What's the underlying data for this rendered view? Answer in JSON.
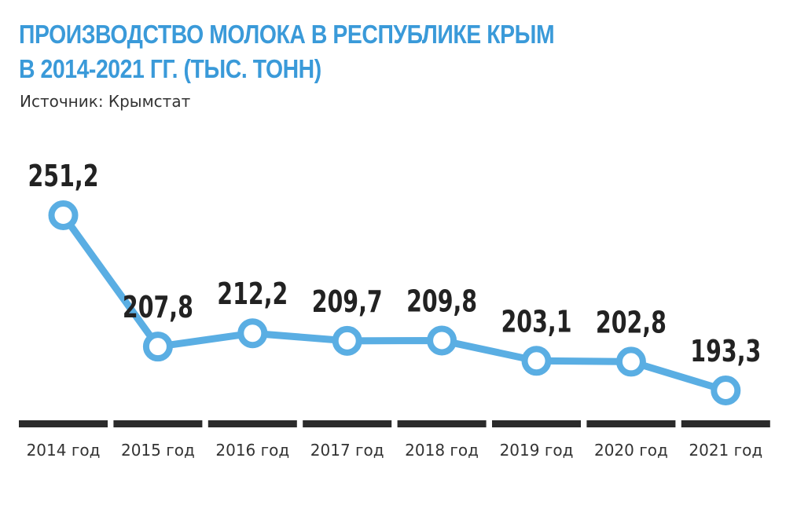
{
  "header": {
    "title_line1": "ПРОИЗВОДСТВО МОЛОКА В РЕСПУБЛИКЕ КРЫМ",
    "title_line2": "В 2014-2021 ГГ. (ТЫС. ТОНН)",
    "source": "Источник: Крымстат"
  },
  "colors": {
    "accent": "#3a9ad9",
    "line": "#5aaee3",
    "axis_bar": "#2b2b2b",
    "text": "#222222"
  },
  "chart_data": {
    "type": "line",
    "categories": [
      "2014 год",
      "2015 год",
      "2016 год",
      "2017 год",
      "2018 год",
      "2019 год",
      "2020 год",
      "2021 год"
    ],
    "series": [
      {
        "values": [
          251.2,
          207.8,
          212.2,
          209.7,
          209.8,
          203.1,
          202.8,
          193.3
        ],
        "labels": [
          "251,2",
          "207,8",
          "212,2",
          "209,7",
          "209,8",
          "203,1",
          "202,8",
          "193,3"
        ]
      }
    ],
    "title": "ПРОИЗВОДСТВО МОЛОКА В РЕСПУБЛИКЕ КРЫМ В 2014-2021 ГГ. (ТЫС. ТОНН)",
    "xlabel": "",
    "ylabel": "",
    "grid": false,
    "legend": "none"
  }
}
